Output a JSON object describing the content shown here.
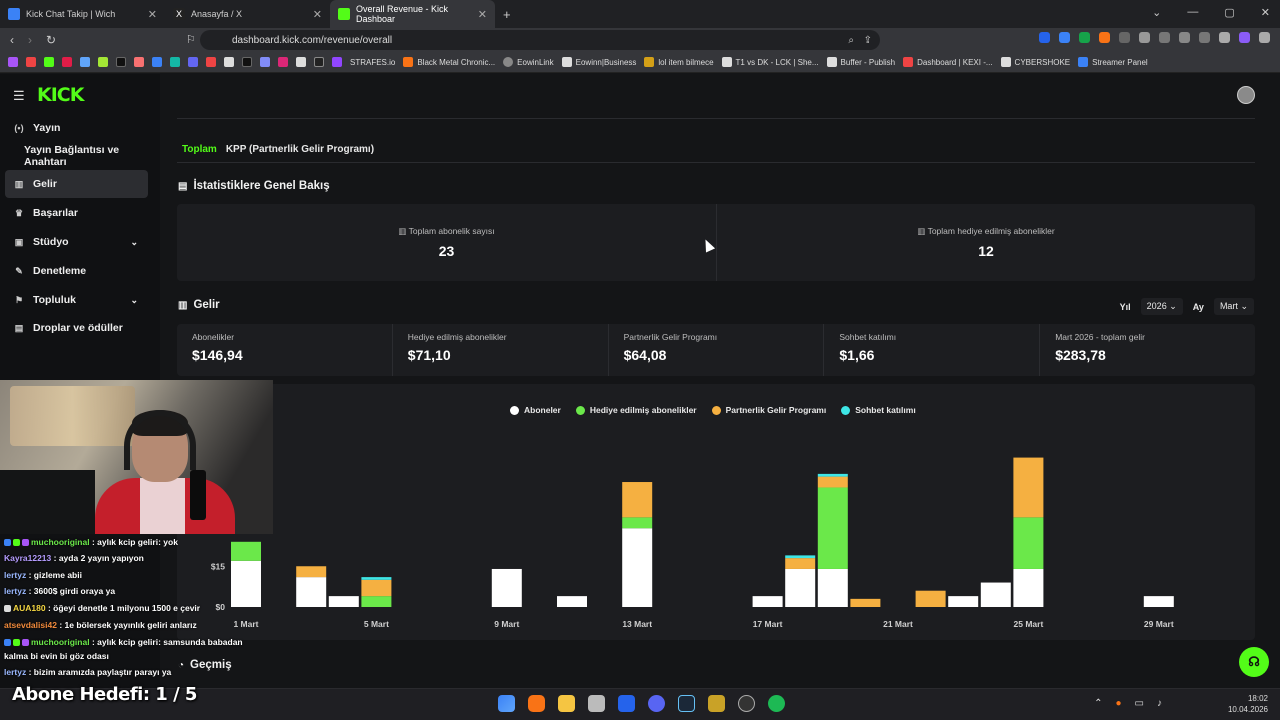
{
  "browser": {
    "tabs": [
      {
        "title": "Kick Chat Takip | Wich",
        "color": "#3b82f6"
      },
      {
        "title": "Anasayfa / X",
        "color": "#ffffff"
      },
      {
        "title": "Overall Revenue - Kick Dashboar",
        "color": "#53fc18"
      }
    ],
    "url": "dashboard.kick.com/revenue/overall",
    "bookmarks": [
      "STRAFES.io",
      "Black Metal Chronic...",
      "EowinLink",
      "Eowinn|Business",
      "lol item bilmece",
      "T1 vs DK - LCK | She...",
      "Buffer - Publish",
      "Dashboard | KEXI -...",
      "CYBERSHOKE",
      "Streamer Panel"
    ]
  },
  "sidebar": {
    "logo": "KICK",
    "items": [
      {
        "label": "Yayın",
        "icon": "broadcast-icon",
        "glyph": "(•)"
      },
      {
        "label": "Yayın Bağlantısı ve Anahtarı",
        "icon": "",
        "glyph": ""
      },
      {
        "label": "Gelir",
        "icon": "revenue-icon",
        "glyph": "▥"
      },
      {
        "label": "Başarılar",
        "icon": "trophy-icon",
        "glyph": "♛"
      },
      {
        "label": "Stüdyo",
        "icon": "studio-icon",
        "glyph": "▣"
      },
      {
        "label": "Denetleme",
        "icon": "moderation-icon",
        "glyph": "✎"
      },
      {
        "label": "Topluluk",
        "icon": "community-icon",
        "glyph": "⚑"
      },
      {
        "label": "Droplar ve ödüller",
        "icon": "drops-icon",
        "glyph": "▤"
      }
    ]
  },
  "main": {
    "tabs": [
      "Toplam",
      "KPP (Partnerlik Gelir Programı)"
    ],
    "overview_title": "İstatistiklere Genel Bakış",
    "stats": [
      {
        "label": "Toplam abonelik sayısı",
        "value": "23"
      },
      {
        "label": "Toplam hediye edilmiş abonelikler",
        "value": "12"
      }
    ],
    "revenue_title": "Gelir",
    "filters": {
      "year_label": "Yıl",
      "year": "2026",
      "month_label": "Ay",
      "month": "Mart"
    },
    "kpis": [
      {
        "label": "Abonelikler",
        "value": "$146,94"
      },
      {
        "label": "Hediye edilmiş abonelikler",
        "value": "$71,10"
      },
      {
        "label": "Partnerlik Gelir Programı",
        "value": "$64,08"
      },
      {
        "label": "Sohbet katılımı",
        "value": "$1,66"
      },
      {
        "label": "Mart 2026 - toplam gelir",
        "value": "$283,78"
      }
    ],
    "history_title": "Geçmiş"
  },
  "colors": {
    "accent": "#53fc18",
    "subs": "#ffffff",
    "gifted": "#6be84a",
    "kpp": "#f5b041",
    "chat": "#3ee6e6"
  },
  "chart_data": {
    "type": "bar",
    "stacked": true,
    "legend": [
      "Aboneler",
      "Hediye edilmiş abonelikler",
      "Partnerlik Gelir Programı",
      "Sohbet katılımı"
    ],
    "legend_placement": "top-center",
    "x_tick_labels": [
      "1 Mart",
      "5 Mart",
      "9 Mart",
      "13 Mart",
      "17 Mart",
      "21 Mart",
      "25 Mart",
      "29 Mart"
    ],
    "y_tick_labels": [
      "$0",
      "$15"
    ],
    "ylim": [
      0,
      60
    ],
    "categories": [
      "1",
      "2",
      "3",
      "4",
      "5",
      "6",
      "7",
      "8",
      "9",
      "10",
      "11",
      "12",
      "13",
      "14",
      "15",
      "16",
      "17",
      "18",
      "19",
      "20",
      "21",
      "22",
      "23",
      "24",
      "25",
      "26",
      "27",
      "28",
      "29"
    ],
    "series": [
      {
        "name": "Aboneler",
        "values": [
          17,
          0,
          11,
          4,
          0,
          0,
          0,
          0,
          14,
          0,
          4,
          0,
          29,
          0,
          0,
          0,
          4,
          14,
          14,
          0,
          0,
          0,
          4,
          9,
          14,
          0,
          0,
          0,
          4
        ]
      },
      {
        "name": "Hediye edilmiş abonelikler",
        "values": [
          7,
          0,
          0,
          0,
          4,
          0,
          0,
          0,
          0,
          0,
          0,
          0,
          4,
          0,
          0,
          0,
          0,
          0,
          30,
          0,
          0,
          0,
          0,
          0,
          19,
          0,
          0,
          0,
          0
        ]
      },
      {
        "name": "Partnerlik Gelir Programı",
        "values": [
          0,
          0,
          4,
          0,
          6,
          0,
          0,
          0,
          0,
          0,
          0,
          0,
          13,
          0,
          0,
          0,
          0,
          4,
          4,
          3,
          0,
          6,
          0,
          0,
          22,
          0,
          0,
          0,
          0
        ]
      },
      {
        "name": "Sohbet katılımı",
        "values": [
          0,
          0,
          0,
          0,
          1,
          0,
          0,
          0,
          0,
          0,
          0,
          0,
          0,
          0,
          0,
          0,
          0,
          1,
          1,
          0,
          0,
          0,
          0,
          0,
          0,
          0,
          0,
          0,
          0
        ]
      }
    ]
  },
  "overlay": {
    "chat": [
      {
        "user": "muchooriginal",
        "msg": ": aylık kcip geliri: yok",
        "color": "#6be84a"
      },
      {
        "user": "Kayra12213",
        "msg": ": ayda 2 yayın yapıyon",
        "color": "#b59cff"
      },
      {
        "user": "lertyz",
        "msg": ": gizleme abii",
        "color": "#9ab8ff"
      },
      {
        "user": "lertyz",
        "msg": ": 3600$ girdi oraya ya",
        "color": "#9ab8ff"
      },
      {
        "user": "AUA180",
        "msg": ": öğeyi denetle 1 milyonu 1500 e çevir",
        "color": "#f5d742"
      },
      {
        "user": "atsevdalisi42",
        "msg": ": 1e bölersek yayınlık geliri anlarız",
        "color": "#f08a3c"
      },
      {
        "user": "muchooriginal",
        "msg": ": aylık kcip geliri: samsunda babadan",
        "color": "#6be84a"
      },
      {
        "user": "",
        "msg": "kalma bi evin bi göz odası",
        "color": "#ffffff"
      },
      {
        "user": "lertyz",
        "msg": ": bizim aramızda paylaştır parayı ya",
        "color": "#9ab8ff"
      }
    ],
    "goal": "Abone Hedefi:  1 / 5"
  },
  "taskbar": {
    "time": "18:02",
    "date": "10.04.2026"
  }
}
